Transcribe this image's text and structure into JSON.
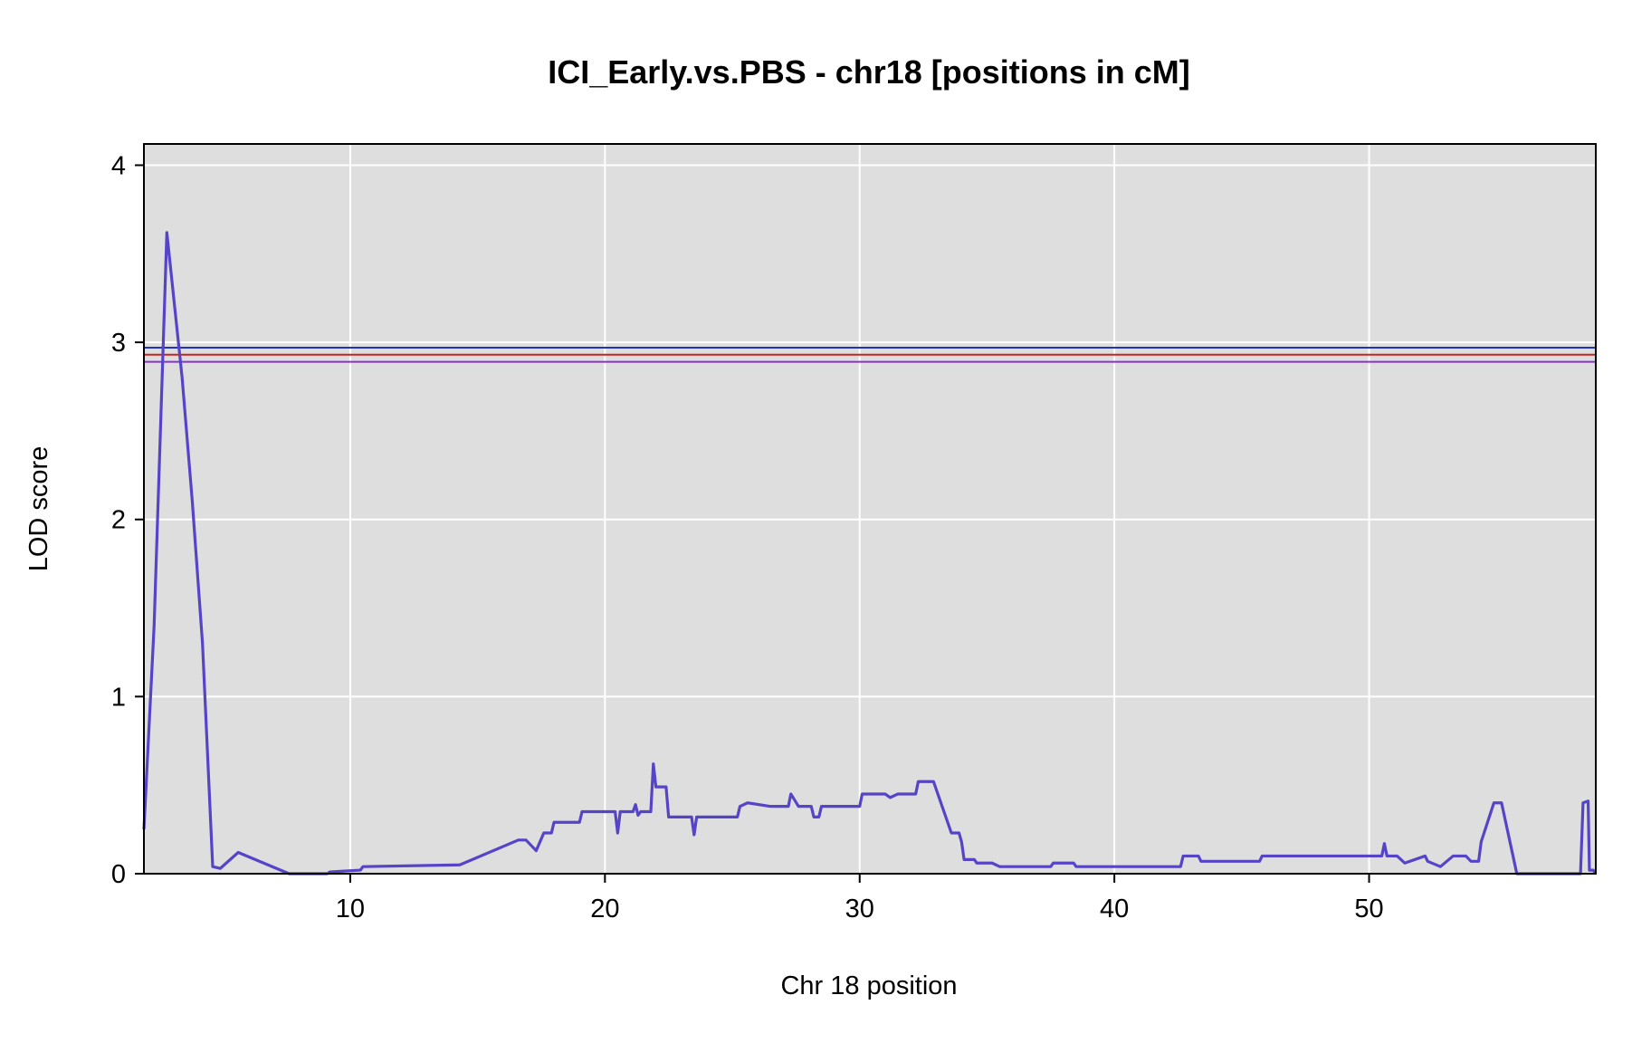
{
  "chart_data": {
    "type": "line",
    "title": "ICI_Early.vs.PBS - chr18 [positions in cM]",
    "xlabel": "Chr 18 position",
    "ylabel": "LOD score",
    "xlim": [
      1.9,
      58.9
    ],
    "ylim": [
      0,
      4.12
    ],
    "xticks": [
      10,
      20,
      30,
      40,
      50
    ],
    "yticks": [
      0,
      1,
      2,
      3,
      4
    ],
    "grid": true,
    "background_color": "#dedede",
    "series": [
      {
        "color": "#5544c8",
        "points": [
          [
            1.9,
            0.25
          ],
          [
            2.3,
            1.4
          ],
          [
            2.8,
            3.62
          ],
          [
            3.4,
            2.8
          ],
          [
            3.8,
            2.1
          ],
          [
            4.2,
            1.3
          ],
          [
            4.6,
            0.04
          ],
          [
            4.9,
            0.03
          ],
          [
            5.6,
            0.12
          ],
          [
            7.1,
            0.03
          ],
          [
            7.6,
            0.0
          ],
          [
            9.1,
            0.0
          ],
          [
            9.2,
            0.01
          ],
          [
            10.4,
            0.02
          ],
          [
            10.5,
            0.04
          ],
          [
            14.3,
            0.05
          ],
          [
            16.6,
            0.19
          ],
          [
            16.9,
            0.19
          ],
          [
            17.3,
            0.13
          ],
          [
            17.6,
            0.23
          ],
          [
            17.9,
            0.23
          ],
          [
            18.0,
            0.29
          ],
          [
            18.6,
            0.29
          ],
          [
            19.0,
            0.29
          ],
          [
            19.1,
            0.35
          ],
          [
            20.4,
            0.35
          ],
          [
            20.5,
            0.23
          ],
          [
            20.6,
            0.35
          ],
          [
            21.1,
            0.35
          ],
          [
            21.2,
            0.39
          ],
          [
            21.3,
            0.33
          ],
          [
            21.4,
            0.35
          ],
          [
            21.8,
            0.35
          ],
          [
            21.9,
            0.62
          ],
          [
            22.0,
            0.49
          ],
          [
            22.4,
            0.49
          ],
          [
            22.5,
            0.32
          ],
          [
            23.4,
            0.32
          ],
          [
            23.5,
            0.22
          ],
          [
            23.6,
            0.32
          ],
          [
            25.2,
            0.32
          ],
          [
            25.3,
            0.38
          ],
          [
            25.6,
            0.4
          ],
          [
            26.5,
            0.38
          ],
          [
            27.2,
            0.38
          ],
          [
            27.3,
            0.45
          ],
          [
            27.6,
            0.38
          ],
          [
            28.1,
            0.38
          ],
          [
            28.2,
            0.32
          ],
          [
            28.4,
            0.32
          ],
          [
            28.5,
            0.38
          ],
          [
            30.0,
            0.38
          ],
          [
            30.1,
            0.45
          ],
          [
            31.0,
            0.45
          ],
          [
            31.2,
            0.43
          ],
          [
            31.5,
            0.45
          ],
          [
            32.2,
            0.45
          ],
          [
            32.3,
            0.52
          ],
          [
            32.9,
            0.52
          ],
          [
            33.6,
            0.23
          ],
          [
            33.9,
            0.23
          ],
          [
            34.0,
            0.18
          ],
          [
            34.1,
            0.08
          ],
          [
            34.5,
            0.08
          ],
          [
            34.6,
            0.06
          ],
          [
            35.2,
            0.06
          ],
          [
            35.5,
            0.04
          ],
          [
            37.5,
            0.04
          ],
          [
            37.6,
            0.06
          ],
          [
            38.4,
            0.06
          ],
          [
            38.5,
            0.04
          ],
          [
            42.6,
            0.04
          ],
          [
            42.7,
            0.1
          ],
          [
            43.3,
            0.1
          ],
          [
            43.4,
            0.07
          ],
          [
            45.7,
            0.07
          ],
          [
            45.8,
            0.1
          ],
          [
            50.5,
            0.1
          ],
          [
            50.6,
            0.17
          ],
          [
            50.7,
            0.1
          ],
          [
            51.1,
            0.1
          ],
          [
            51.4,
            0.06
          ],
          [
            52.2,
            0.1
          ],
          [
            52.3,
            0.07
          ],
          [
            52.8,
            0.04
          ],
          [
            53.3,
            0.1
          ],
          [
            53.8,
            0.1
          ],
          [
            54.0,
            0.07
          ],
          [
            54.3,
            0.07
          ],
          [
            54.4,
            0.18
          ],
          [
            54.9,
            0.4
          ],
          [
            55.2,
            0.4
          ],
          [
            55.8,
            0.0
          ],
          [
            58.3,
            0.0
          ],
          [
            58.4,
            0.4
          ],
          [
            58.6,
            0.41
          ],
          [
            58.65,
            0.02
          ],
          [
            58.8,
            0.02
          ],
          [
            58.9,
            0.0
          ]
        ]
      }
    ],
    "thresholds": [
      {
        "value": 2.97,
        "color": "#2233bb"
      },
      {
        "value": 2.93,
        "color": "#cc2222"
      },
      {
        "value": 2.89,
        "color": "#8833cc"
      }
    ]
  }
}
